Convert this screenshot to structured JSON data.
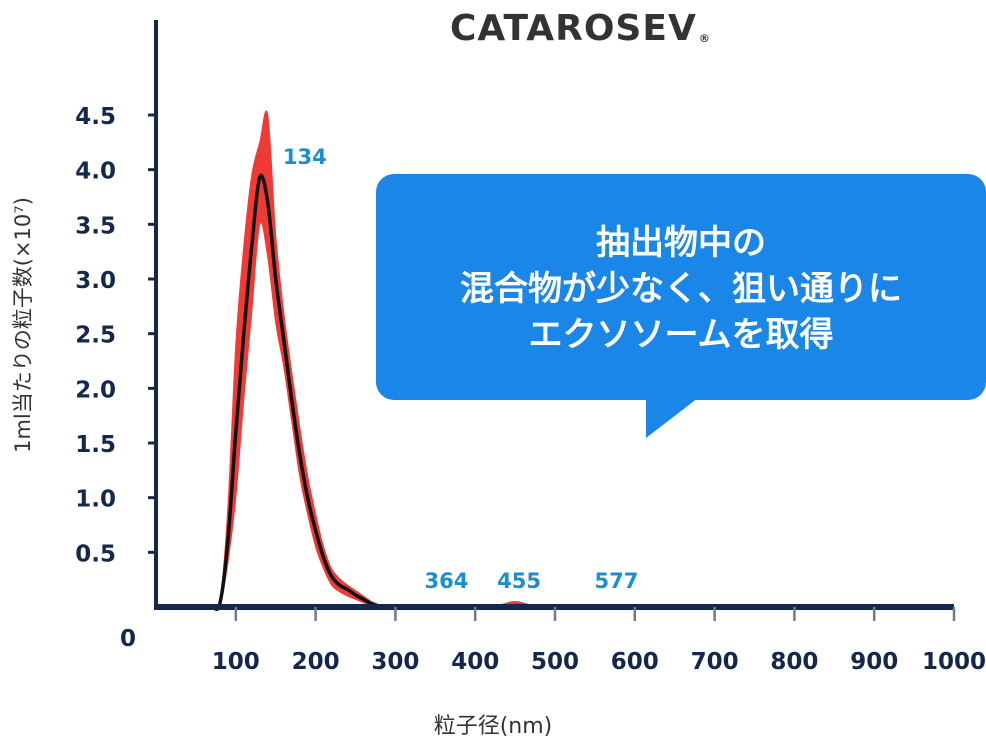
{
  "chart_data": {
    "type": "area",
    "title": "CATAROSEV",
    "title_mark": "®",
    "xlabel": "粒子径(nm)",
    "ylabel": "1ml当たりの粒子数(×10⁷)",
    "xlim": [
      0,
      1000
    ],
    "ylim": [
      0,
      4.5
    ],
    "x_ticks": [
      100,
      200,
      300,
      400,
      500,
      600,
      700,
      800,
      900,
      1000
    ],
    "y_ticks": [
      0.5,
      1.0,
      1.5,
      2.0,
      2.5,
      3.0,
      3.5,
      4.0,
      4.5
    ],
    "origin_label": "0",
    "series": [
      {
        "style": "mean line",
        "color": "#111111",
        "x": [
          60,
          70,
          80,
          90,
          100,
          110,
          120,
          130,
          140,
          150,
          160,
          170,
          180,
          190,
          200,
          210,
          220,
          230,
          240,
          250,
          260,
          270,
          280,
          290,
          300
        ],
        "y": [
          0.0,
          0.0,
          0.03,
          0.6,
          1.6,
          2.5,
          3.3,
          3.93,
          3.7,
          3.0,
          2.45,
          1.9,
          1.4,
          1.0,
          0.7,
          0.45,
          0.28,
          0.2,
          0.16,
          0.11,
          0.07,
          0.03,
          0.01,
          0.0,
          0.0
        ]
      },
      {
        "style": "error band",
        "color": "#f03a36",
        "x": [
          60,
          70,
          80,
          90,
          100,
          110,
          120,
          130,
          140,
          150,
          160,
          170,
          180,
          190,
          200,
          210,
          220,
          230,
          240,
          250,
          260,
          270,
          280,
          290,
          300,
          400,
          430,
          450,
          470,
          500
        ],
        "upper": [
          0.0,
          0.0,
          0.05,
          0.9,
          2.4,
          3.3,
          3.95,
          4.25,
          4.5,
          3.4,
          2.7,
          2.15,
          1.65,
          1.2,
          0.85,
          0.55,
          0.35,
          0.26,
          0.2,
          0.15,
          0.1,
          0.05,
          0.02,
          0.0,
          0.0,
          0.0,
          0.02,
          0.05,
          0.02,
          0.0
        ],
        "lower": [
          0.0,
          0.0,
          0.0,
          0.4,
          1.0,
          1.9,
          2.7,
          3.5,
          3.2,
          2.6,
          2.2,
          1.7,
          1.2,
          0.85,
          0.55,
          0.35,
          0.2,
          0.14,
          0.1,
          0.07,
          0.04,
          0.01,
          0.0,
          0.0,
          0.0,
          0.0,
          0.0,
          0.0,
          0.0,
          0.0
        ]
      }
    ],
    "annotations": [
      {
        "text": "134",
        "x": 134,
        "y": 4.05,
        "color": "#1a8fd0"
      },
      {
        "text": "364",
        "x": 364,
        "y": 0.12,
        "color": "#1a8fd0"
      },
      {
        "text": "455",
        "x": 455,
        "y": 0.12,
        "color": "#1a8fd0"
      },
      {
        "text": "577",
        "x": 577,
        "y": 0.12,
        "color": "#1a8fd0"
      }
    ],
    "grid": false,
    "axis_color": "#14284b"
  },
  "callout": {
    "lines": [
      "抽出物中の",
      "混合物が少なく、狙い通りに",
      "エクソソームを取得"
    ],
    "color": "#1a86e8"
  }
}
